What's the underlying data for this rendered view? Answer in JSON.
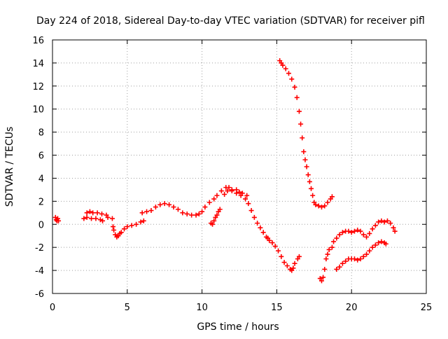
{
  "chart_data": {
    "type": "scatter",
    "title": "Day 224 of 2018, Sidereal Day-to-day VTEC variation (SDTVAR) for receiver pifl",
    "xlabel": "GPS time / hours",
    "ylabel": "SDTVAR / TECUs",
    "xlim": [
      0,
      25
    ],
    "ylim": [
      -6,
      16
    ],
    "x_ticks": [
      0,
      5,
      10,
      15,
      20,
      25
    ],
    "y_ticks": [
      -6,
      -4,
      -2,
      0,
      2,
      4,
      6,
      8,
      10,
      12,
      14,
      16
    ],
    "grid": true,
    "legend": "none",
    "marker": "plus",
    "color": "#ff0000",
    "series": [
      {
        "points": [
          [
            0.2,
            0.6
          ],
          [
            0.25,
            0.4
          ],
          [
            0.3,
            0.3
          ],
          [
            0.35,
            0.5
          ],
          [
            0.4,
            0.3
          ],
          [
            2.1,
            0.5
          ],
          [
            2.3,
            0.6
          ],
          [
            2.6,
            0.5
          ],
          [
            2.9,
            0.5
          ],
          [
            3.2,
            0.4
          ],
          [
            3.35,
            0.3
          ],
          [
            2.3,
            1.0
          ],
          [
            2.5,
            1.1
          ],
          [
            2.7,
            1.0
          ],
          [
            3.0,
            1.0
          ],
          [
            3.3,
            0.9
          ],
          [
            3.6,
            0.8
          ],
          [
            3.7,
            0.6
          ],
          [
            4.0,
            0.5
          ],
          [
            4.05,
            -0.2
          ],
          [
            4.1,
            -0.5
          ],
          [
            4.2,
            -0.9
          ],
          [
            4.3,
            -1.1
          ],
          [
            4.4,
            -1.0
          ],
          [
            4.5,
            -0.8
          ],
          [
            4.6,
            -0.7
          ],
          [
            4.8,
            -0.4
          ],
          [
            5.0,
            -0.2
          ],
          [
            5.3,
            -0.1
          ],
          [
            5.6,
            0.0
          ],
          [
            5.9,
            0.2
          ],
          [
            6.1,
            0.3
          ],
          [
            6.0,
            1.0
          ],
          [
            6.3,
            1.1
          ],
          [
            6.6,
            1.2
          ],
          [
            6.9,
            1.5
          ],
          [
            7.2,
            1.7
          ],
          [
            7.5,
            1.8
          ],
          [
            7.8,
            1.7
          ],
          [
            8.1,
            1.5
          ],
          [
            8.4,
            1.3
          ],
          [
            8.7,
            1.0
          ],
          [
            9.0,
            0.9
          ],
          [
            9.3,
            0.8
          ],
          [
            9.6,
            0.8
          ],
          [
            9.8,
            0.9
          ],
          [
            10.0,
            1.1
          ],
          [
            10.2,
            1.5
          ],
          [
            10.5,
            1.9
          ],
          [
            10.8,
            2.2
          ],
          [
            11.0,
            2.5
          ],
          [
            11.3,
            2.9
          ],
          [
            11.6,
            3.2
          ],
          [
            11.8,
            3.2
          ],
          [
            12.0,
            2.9
          ],
          [
            12.3,
            2.7
          ],
          [
            12.6,
            2.5
          ],
          [
            12.9,
            2.2
          ],
          [
            13.1,
            1.8
          ],
          [
            13.3,
            1.2
          ],
          [
            13.5,
            0.6
          ],
          [
            13.7,
            0.1
          ],
          [
            13.9,
            -0.3
          ],
          [
            14.1,
            -0.7
          ],
          [
            14.3,
            -1.1
          ],
          [
            14.4,
            -1.2
          ],
          [
            10.6,
            0.1
          ],
          [
            10.7,
            0.0
          ],
          [
            10.8,
            0.3
          ],
          [
            10.9,
            0.6
          ],
          [
            11.0,
            0.8
          ],
          [
            11.1,
            1.1
          ],
          [
            11.2,
            1.3
          ],
          [
            11.5,
            2.6
          ],
          [
            11.7,
            2.9
          ],
          [
            12.0,
            3.0
          ],
          [
            12.3,
            3.0
          ],
          [
            12.5,
            2.8
          ],
          [
            12.7,
            2.7
          ],
          [
            13.0,
            2.5
          ],
          [
            14.5,
            -1.4
          ],
          [
            14.7,
            -1.6
          ],
          [
            14.9,
            -1.9
          ],
          [
            15.1,
            -2.3
          ],
          [
            15.3,
            -2.8
          ],
          [
            15.5,
            -3.3
          ],
          [
            15.7,
            -3.6
          ],
          [
            15.9,
            -3.9
          ],
          [
            16.0,
            -4.0
          ],
          [
            16.1,
            -3.8
          ],
          [
            16.2,
            -3.4
          ],
          [
            16.4,
            -3.0
          ],
          [
            16.5,
            -2.8
          ],
          [
            15.2,
            14.2
          ],
          [
            15.3,
            14.0
          ],
          [
            15.4,
            13.8
          ],
          [
            15.6,
            13.5
          ],
          [
            15.8,
            13.1
          ],
          [
            16.0,
            12.6
          ],
          [
            16.2,
            11.9
          ],
          [
            16.35,
            11.0
          ],
          [
            16.5,
            9.8
          ],
          [
            16.6,
            8.7
          ],
          [
            16.7,
            7.5
          ],
          [
            16.8,
            6.3
          ],
          [
            16.9,
            5.6
          ],
          [
            17.0,
            5.0
          ],
          [
            17.1,
            4.3
          ],
          [
            17.2,
            3.7
          ],
          [
            17.3,
            3.1
          ],
          [
            17.4,
            2.5
          ],
          [
            17.5,
            1.9
          ],
          [
            17.6,
            1.7
          ],
          [
            17.8,
            1.6
          ],
          [
            18.0,
            1.5
          ],
          [
            18.2,
            1.6
          ],
          [
            18.4,
            1.9
          ],
          [
            18.6,
            2.2
          ],
          [
            18.7,
            2.4
          ],
          [
            17.9,
            -4.7
          ],
          [
            18.0,
            -4.9
          ],
          [
            18.1,
            -4.6
          ],
          [
            18.2,
            -3.9
          ],
          [
            18.3,
            -3.0
          ],
          [
            18.4,
            -2.6
          ],
          [
            18.5,
            -2.2
          ],
          [
            18.7,
            -2.0
          ],
          [
            18.8,
            -1.5
          ],
          [
            19.0,
            -1.2
          ],
          [
            19.2,
            -0.9
          ],
          [
            19.4,
            -0.7
          ],
          [
            19.6,
            -0.6
          ],
          [
            19.8,
            -0.6
          ],
          [
            20.0,
            -0.7
          ],
          [
            20.2,
            -0.6
          ],
          [
            20.4,
            -0.5
          ],
          [
            20.6,
            -0.6
          ],
          [
            20.8,
            -0.9
          ],
          [
            21.0,
            -1.1
          ],
          [
            21.2,
            -0.8
          ],
          [
            21.4,
            -0.4
          ],
          [
            21.6,
            -0.1
          ],
          [
            21.8,
            0.2
          ],
          [
            22.0,
            0.3
          ],
          [
            22.2,
            0.2
          ],
          [
            22.4,
            0.3
          ],
          [
            22.6,
            0.1
          ],
          [
            22.8,
            -0.3
          ],
          [
            22.9,
            -0.6
          ],
          [
            19.0,
            -3.9
          ],
          [
            19.2,
            -3.7
          ],
          [
            19.4,
            -3.4
          ],
          [
            19.6,
            -3.2
          ],
          [
            19.8,
            -3.0
          ],
          [
            20.0,
            -3.0
          ],
          [
            20.2,
            -3.0
          ],
          [
            20.4,
            -3.1
          ],
          [
            20.6,
            -3.0
          ],
          [
            20.8,
            -2.8
          ],
          [
            21.0,
            -2.6
          ],
          [
            21.2,
            -2.3
          ],
          [
            21.4,
            -2.0
          ],
          [
            21.6,
            -1.8
          ],
          [
            21.8,
            -1.6
          ],
          [
            22.0,
            -1.5
          ],
          [
            22.2,
            -1.6
          ],
          [
            22.3,
            -1.7
          ]
        ]
      }
    ]
  }
}
